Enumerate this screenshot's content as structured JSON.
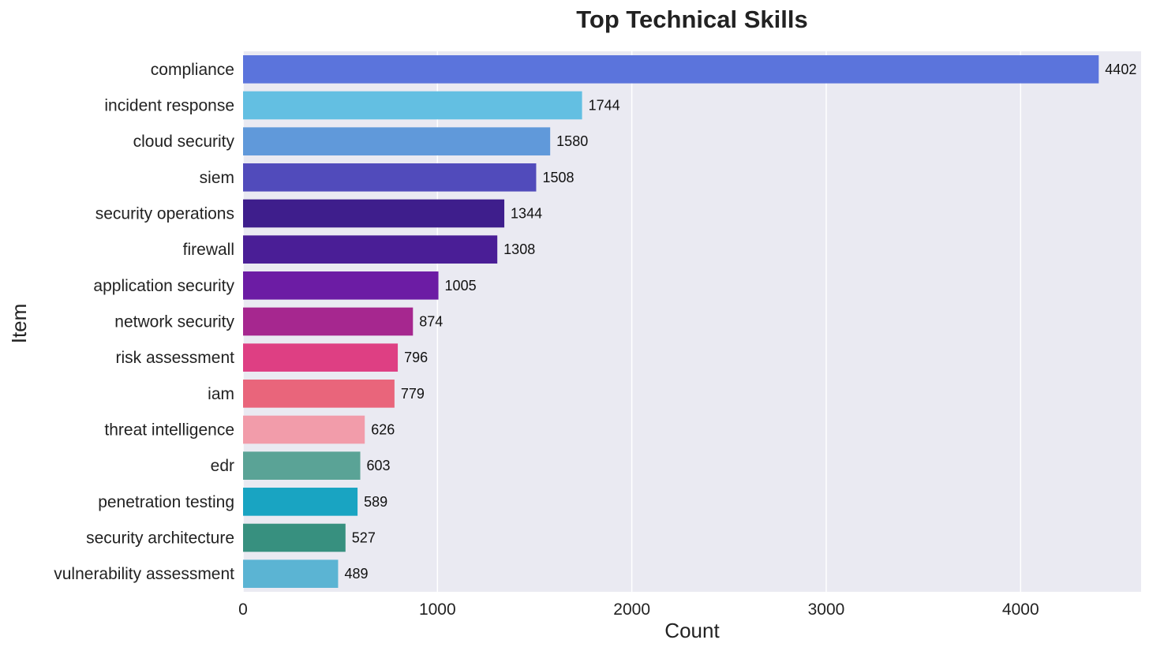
{
  "chart_data": {
    "type": "bar",
    "orientation": "horizontal",
    "title": "Top Technical Skills",
    "xlabel": "Count",
    "ylabel": "Item",
    "xlim": [
      0,
      4620
    ],
    "xticks": [
      0,
      1000,
      2000,
      3000,
      4000
    ],
    "grid": true,
    "background": "#eaeaf2",
    "categories": [
      "compliance",
      "incident response",
      "cloud security",
      "siem",
      "security operations",
      "firewall",
      "application security",
      "network security",
      "risk assessment",
      "iam",
      "threat intelligence",
      "edr",
      "penetration testing",
      "security architecture",
      "vulnerability assessment"
    ],
    "values": [
      4402,
      1744,
      1580,
      1508,
      1344,
      1308,
      1005,
      874,
      796,
      779,
      626,
      603,
      589,
      527,
      489
    ],
    "colors": [
      "#5b74dc",
      "#63bfe2",
      "#6099da",
      "#514bbb",
      "#3e1e8c",
      "#4a1e96",
      "#6c1ca4",
      "#a6278f",
      "#de3f83",
      "#e9657b",
      "#f29caa",
      "#5aa396",
      "#19a4c2",
      "#37907f",
      "#5bb4d3"
    ]
  }
}
